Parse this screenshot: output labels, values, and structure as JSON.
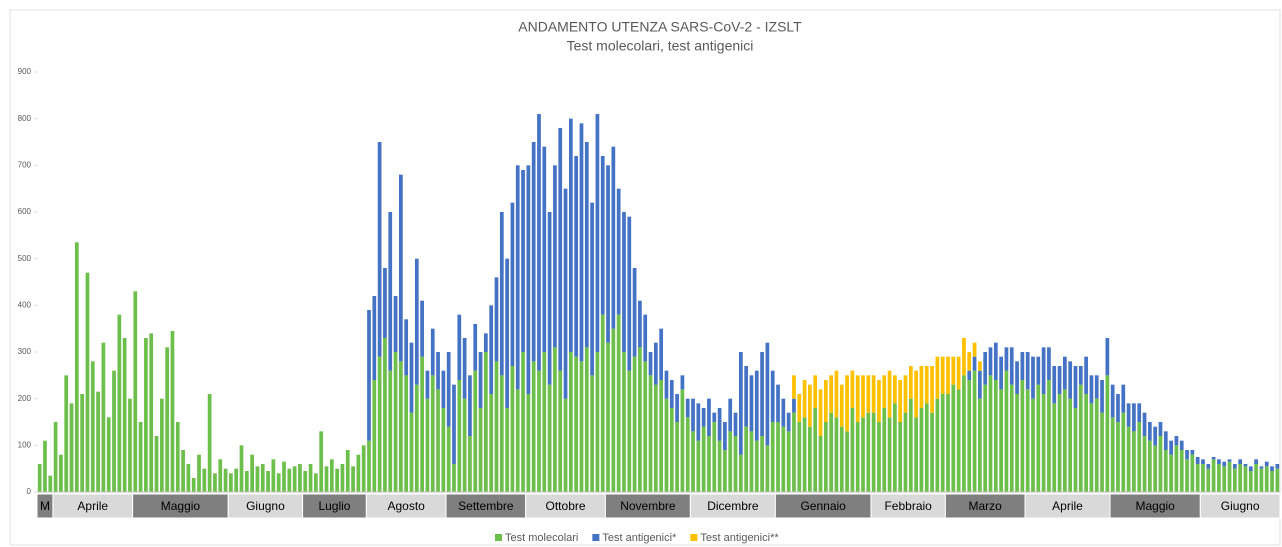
{
  "chart_data": {
    "type": "stacked_bar",
    "title": "ANDAMENTO UTENZA SARS-CoV-2 - IZSLT",
    "subtitle": "Test molecolari, test antigenici",
    "categories": [
      "M",
      "M",
      "M",
      "Aprile",
      "Aprile",
      "Aprile",
      "Aprile",
      "Aprile",
      "Aprile",
      "Aprile",
      "Aprile",
      "Aprile",
      "Aprile",
      "Aprile",
      "Aprile",
      "Aprile",
      "Aprile",
      "Aprile",
      "Maggio",
      "Maggio",
      "Maggio",
      "Maggio",
      "Maggio",
      "Maggio",
      "Maggio",
      "Maggio",
      "Maggio",
      "Maggio",
      "Maggio",
      "Maggio",
      "Maggio",
      "Maggio",
      "Maggio",
      "Maggio",
      "Maggio",
      "Maggio",
      "Giugno",
      "Giugno",
      "Giugno",
      "Giugno",
      "Giugno",
      "Giugno",
      "Giugno",
      "Giugno",
      "Giugno",
      "Giugno",
      "Giugno",
      "Giugno",
      "Giugno",
      "Giugno",
      "Luglio",
      "Luglio",
      "Luglio",
      "Luglio",
      "Luglio",
      "Luglio",
      "Luglio",
      "Luglio",
      "Luglio",
      "Luglio",
      "Luglio",
      "Luglio",
      "Agosto",
      "Agosto",
      "Agosto",
      "Agosto",
      "Agosto",
      "Agosto",
      "Agosto",
      "Agosto",
      "Agosto",
      "Agosto",
      "Agosto",
      "Agosto",
      "Agosto",
      "Agosto",
      "Agosto",
      "Settembre",
      "Settembre",
      "Settembre",
      "Settembre",
      "Settembre",
      "Settembre",
      "Settembre",
      "Settembre",
      "Settembre",
      "Settembre",
      "Settembre",
      "Settembre",
      "Settembre",
      "Settembre",
      "Settembre",
      "Ottobre",
      "Ottobre",
      "Ottobre",
      "Ottobre",
      "Ottobre",
      "Ottobre",
      "Ottobre",
      "Ottobre",
      "Ottobre",
      "Ottobre",
      "Ottobre",
      "Ottobre",
      "Ottobre",
      "Ottobre",
      "Ottobre",
      "Novembre",
      "Novembre",
      "Novembre",
      "Novembre",
      "Novembre",
      "Novembre",
      "Novembre",
      "Novembre",
      "Novembre",
      "Novembre",
      "Novembre",
      "Novembre",
      "Novembre",
      "Novembre",
      "Novembre",
      "Novembre",
      "Dicembre",
      "Dicembre",
      "Dicembre",
      "Dicembre",
      "Dicembre",
      "Dicembre",
      "Dicembre",
      "Dicembre",
      "Dicembre",
      "Dicembre",
      "Dicembre",
      "Dicembre",
      "Dicembre",
      "Dicembre",
      "Dicembre",
      "Dicembre",
      "Gennaio",
      "Gennaio",
      "Gennaio",
      "Gennaio",
      "Gennaio",
      "Gennaio",
      "Gennaio",
      "Gennaio",
      "Gennaio",
      "Gennaio",
      "Gennaio",
      "Gennaio",
      "Gennaio",
      "Gennaio",
      "Gennaio",
      "Gennaio",
      "Gennaio",
      "Gennaio",
      "Febbraio",
      "Febbraio",
      "Febbraio",
      "Febbraio",
      "Febbraio",
      "Febbraio",
      "Febbraio",
      "Febbraio",
      "Febbraio",
      "Febbraio",
      "Febbraio",
      "Febbraio",
      "Febbraio",
      "Febbraio",
      "Marzo",
      "Marzo",
      "Marzo",
      "Marzo",
      "Marzo",
      "Marzo",
      "Marzo",
      "Marzo",
      "Marzo",
      "Marzo",
      "Marzo",
      "Marzo",
      "Marzo",
      "Marzo",
      "Marzo",
      "Aprile",
      "Aprile",
      "Aprile",
      "Aprile",
      "Aprile",
      "Aprile",
      "Aprile",
      "Aprile",
      "Aprile",
      "Aprile",
      "Aprile",
      "Aprile",
      "Aprile",
      "Aprile",
      "Aprile",
      "Aprile",
      "Maggio",
      "Maggio",
      "Maggio",
      "Maggio",
      "Maggio",
      "Maggio",
      "Maggio",
      "Maggio",
      "Maggio",
      "Maggio",
      "Maggio",
      "Maggio",
      "Maggio",
      "Maggio",
      "Maggio",
      "Maggio",
      "Maggio",
      "Giugno",
      "Giugno",
      "Giugno",
      "Giugno",
      "Giugno",
      "Giugno",
      "Giugno",
      "Giugno",
      "Giugno",
      "Giugno",
      "Giugno",
      "Giugno",
      "Giugno",
      "Giugno",
      "Giugno"
    ],
    "series": [
      {
        "name": "Test molecolari",
        "color": "#6cbf4a",
        "values": [
          60,
          110,
          35,
          150,
          80,
          250,
          190,
          535,
          210,
          470,
          280,
          215,
          320,
          160,
          260,
          380,
          330,
          200,
          430,
          150,
          330,
          340,
          120,
          200,
          310,
          345,
          150,
          90,
          60,
          30,
          80,
          50,
          210,
          40,
          70,
          50,
          40,
          50,
          100,
          45,
          80,
          55,
          60,
          45,
          70,
          40,
          65,
          50,
          55,
          60,
          45,
          60,
          40,
          130,
          55,
          70,
          50,
          60,
          90,
          55,
          80,
          100,
          110,
          240,
          290,
          330,
          260,
          300,
          280,
          250,
          170,
          230,
          290,
          200,
          250,
          220,
          180,
          140,
          60,
          240,
          200,
          120,
          260,
          180,
          300,
          210,
          280,
          250,
          180,
          270,
          220,
          300,
          210,
          280,
          260,
          300,
          230,
          310,
          260,
          200,
          300,
          290,
          280,
          310,
          250,
          300,
          380,
          320,
          350,
          380,
          300,
          260,
          290,
          310,
          280,
          250,
          230,
          240,
          200,
          180,
          150,
          220,
          160,
          130,
          110,
          140,
          120,
          150,
          110,
          90,
          130,
          120,
          80,
          140,
          130,
          110,
          120,
          100,
          150,
          150,
          140,
          130,
          170,
          150,
          160,
          140,
          180,
          120,
          150,
          170,
          160,
          140,
          130,
          180,
          150,
          160,
          170,
          170,
          150,
          180,
          160,
          190,
          150,
          170,
          200,
          160,
          180,
          190,
          170,
          200,
          210,
          210,
          230,
          220,
          250,
          240,
          260,
          200,
          230,
          250,
          240,
          220,
          260,
          230,
          210,
          240,
          220,
          200,
          230,
          210,
          240,
          190,
          210,
          220,
          200,
          180,
          230,
          210,
          190,
          200,
          170,
          250,
          160,
          150,
          170,
          140,
          130,
          150,
          120,
          110,
          100,
          120,
          90,
          80,
          100,
          90,
          70,
          80,
          60,
          60,
          50,
          70,
          60,
          55,
          65,
          50,
          60,
          55,
          45,
          60,
          50,
          55,
          45,
          50
        ]
      },
      {
        "name": "Test antigenici*",
        "color": "#4472c4",
        "values": [
          0,
          0,
          0,
          0,
          0,
          0,
          0,
          0,
          0,
          0,
          0,
          0,
          0,
          0,
          0,
          0,
          0,
          0,
          0,
          0,
          0,
          0,
          0,
          0,
          0,
          0,
          0,
          0,
          0,
          0,
          0,
          0,
          0,
          0,
          0,
          0,
          0,
          0,
          0,
          0,
          0,
          0,
          0,
          0,
          0,
          0,
          0,
          0,
          0,
          0,
          0,
          0,
          0,
          0,
          0,
          0,
          0,
          0,
          0,
          0,
          0,
          0,
          280,
          180,
          460,
          150,
          340,
          120,
          400,
          120,
          150,
          270,
          120,
          60,
          100,
          80,
          80,
          160,
          170,
          140,
          130,
          130,
          100,
          120,
          40,
          190,
          180,
          350,
          320,
          350,
          480,
          390,
          490,
          470,
          550,
          440,
          370,
          390,
          520,
          450,
          500,
          430,
          510,
          440,
          370,
          510,
          340,
          380,
          390,
          270,
          300,
          330,
          190,
          100,
          100,
          50,
          90,
          110,
          60,
          60,
          60,
          30,
          40,
          70,
          80,
          40,
          80,
          20,
          70,
          60,
          70,
          50,
          220,
          130,
          120,
          150,
          180,
          220,
          110,
          80,
          60,
          40,
          30,
          0,
          0,
          0,
          0,
          0,
          0,
          0,
          0,
          0,
          0,
          0,
          0,
          0,
          0,
          0,
          0,
          0,
          0,
          0,
          0,
          0,
          0,
          0,
          0,
          0,
          0,
          0,
          0,
          0,
          0,
          0,
          0,
          20,
          30,
          60,
          70,
          60,
          80,
          70,
          50,
          80,
          70,
          60,
          80,
          90,
          60,
          100,
          70,
          80,
          60,
          70,
          80,
          90,
          40,
          80,
          60,
          50,
          70,
          80,
          70,
          60,
          60,
          50,
          60,
          40,
          50,
          40,
          40,
          30,
          40,
          30,
          20,
          20,
          20,
          10,
          15,
          10,
          10,
          5,
          10,
          10,
          5,
          10,
          10,
          5,
          10,
          10,
          5,
          10,
          10,
          10
        ]
      },
      {
        "name": "Test antigenici**",
        "color": "#ffc000",
        "values": [
          0,
          0,
          0,
          0,
          0,
          0,
          0,
          0,
          0,
          0,
          0,
          0,
          0,
          0,
          0,
          0,
          0,
          0,
          0,
          0,
          0,
          0,
          0,
          0,
          0,
          0,
          0,
          0,
          0,
          0,
          0,
          0,
          0,
          0,
          0,
          0,
          0,
          0,
          0,
          0,
          0,
          0,
          0,
          0,
          0,
          0,
          0,
          0,
          0,
          0,
          0,
          0,
          0,
          0,
          0,
          0,
          0,
          0,
          0,
          0,
          0,
          0,
          0,
          0,
          0,
          0,
          0,
          0,
          0,
          0,
          0,
          0,
          0,
          0,
          0,
          0,
          0,
          0,
          0,
          0,
          0,
          0,
          0,
          0,
          0,
          0,
          0,
          0,
          0,
          0,
          0,
          0,
          0,
          0,
          0,
          0,
          0,
          0,
          0,
          0,
          0,
          0,
          0,
          0,
          0,
          0,
          0,
          0,
          0,
          0,
          0,
          0,
          0,
          0,
          0,
          0,
          0,
          0,
          0,
          0,
          0,
          0,
          0,
          0,
          0,
          0,
          0,
          0,
          0,
          0,
          0,
          0,
          0,
          0,
          0,
          0,
          0,
          0,
          0,
          0,
          0,
          0,
          50,
          60,
          80,
          90,
          70,
          100,
          90,
          80,
          100,
          90,
          120,
          80,
          100,
          90,
          80,
          80,
          90,
          70,
          100,
          60,
          90,
          80,
          70,
          100,
          90,
          80,
          100,
          90,
          80,
          80,
          60,
          70,
          80,
          40,
          30,
          20,
          0,
          0,
          0,
          0,
          0,
          0,
          0,
          0,
          0,
          0,
          0,
          0,
          0,
          0,
          0,
          0,
          0,
          0,
          0,
          0,
          0,
          0,
          0,
          0,
          0,
          0,
          0,
          0,
          0,
          0,
          0,
          0,
          0,
          0,
          0,
          0,
          0,
          0,
          0,
          0,
          0,
          0,
          0,
          0,
          0,
          0,
          0,
          0,
          0,
          0,
          0,
          0,
          0,
          0,
          0,
          0
        ]
      }
    ],
    "ylim": [
      0,
      900
    ],
    "yticks": [
      0,
      100,
      200,
      300,
      400,
      500,
      600,
      700,
      800,
      900
    ],
    "legend": "bottom"
  }
}
